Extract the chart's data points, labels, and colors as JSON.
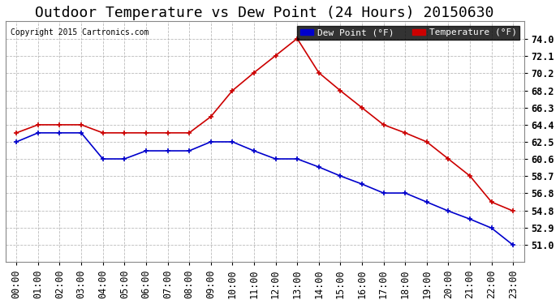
{
  "title": "Outdoor Temperature vs Dew Point (24 Hours) 20150630",
  "copyright": "Copyright 2015 Cartronics.com",
  "legend_dew": "Dew Point (°F)",
  "legend_temp": "Temperature (°F)",
  "hours": [
    0,
    1,
    2,
    3,
    4,
    5,
    6,
    7,
    8,
    9,
    10,
    11,
    12,
    13,
    14,
    15,
    16,
    17,
    18,
    19,
    20,
    21,
    22,
    23
  ],
  "temperature": [
    63.5,
    64.4,
    64.4,
    64.4,
    63.5,
    63.5,
    63.5,
    63.5,
    63.5,
    65.3,
    68.2,
    70.2,
    72.1,
    74.0,
    70.2,
    68.2,
    66.3,
    64.4,
    63.5,
    62.5,
    60.6,
    58.7,
    55.8,
    54.8
  ],
  "dew_point": [
    62.5,
    63.5,
    63.5,
    63.5,
    60.6,
    60.6,
    61.5,
    61.5,
    61.5,
    62.5,
    62.5,
    61.5,
    60.6,
    60.6,
    59.7,
    58.7,
    57.8,
    56.8,
    56.8,
    55.8,
    54.8,
    53.9,
    52.9,
    51.0
  ],
  "temp_color": "#cc0000",
  "dew_color": "#0000cc",
  "bg_color": "#ffffff",
  "plot_bg_color": "#ffffff",
  "grid_color": "#aaaaaa",
  "ylim_min": 49.1,
  "ylim_max": 75.9,
  "yticks": [
    51.0,
    52.9,
    54.8,
    56.8,
    58.7,
    60.6,
    62.5,
    64.4,
    66.3,
    68.2,
    70.2,
    72.1,
    74.0
  ],
  "title_fontsize": 13,
  "tick_fontsize": 8.5,
  "legend_fontsize": 8,
  "copyright_fontsize": 7
}
